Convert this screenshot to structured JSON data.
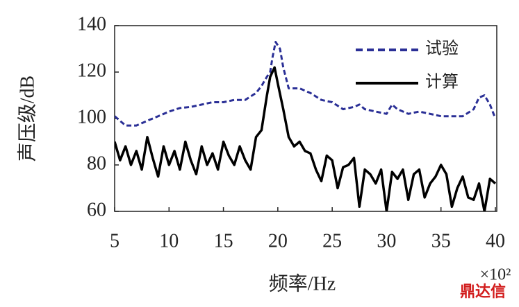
{
  "chart_data": {
    "type": "line",
    "y_label": "声压级/dB",
    "x_label": "频率/Hz",
    "x_multiplier": "×10²",
    "watermark": "鼎达信",
    "xlim": [
      5,
      40
    ],
    "xticks": [
      5,
      10,
      15,
      20,
      25,
      30,
      35,
      40
    ],
    "ylim": [
      60,
      140
    ],
    "yticks": [
      60,
      80,
      100,
      120,
      140
    ],
    "series": [
      {
        "name": "试验",
        "color": "#2a2f96",
        "dash": true,
        "x": [
          5,
          6,
          7,
          7.5,
          8.5,
          9,
          10,
          11,
          12,
          13,
          14,
          15,
          16,
          17,
          18,
          18.5,
          19,
          19.3,
          19.5,
          19.8,
          20.2,
          20.5,
          21,
          22,
          23,
          24,
          25,
          26,
          27,
          27.5,
          28,
          29,
          30,
          30.5,
          31,
          32,
          33,
          34,
          35,
          36,
          37,
          38,
          38.5,
          39,
          39.5,
          40
        ],
        "values": [
          101,
          97,
          97,
          98,
          100,
          101,
          103,
          104.5,
          105,
          106,
          107,
          107,
          108,
          108,
          111,
          114,
          118,
          120,
          126,
          133,
          130,
          122,
          113,
          113,
          111,
          108,
          107,
          104,
          105,
          106,
          104,
          103,
          102,
          106,
          104,
          102,
          103,
          102,
          101,
          101,
          101,
          104,
          109,
          110,
          106,
          100
        ]
      },
      {
        "name": "计算",
        "color": "#000000",
        "dash": false,
        "x": [
          5,
          5.5,
          6,
          6.5,
          7,
          7.5,
          8,
          8.5,
          9,
          9.5,
          10,
          10.5,
          11,
          11.5,
          12,
          12.5,
          13,
          13.5,
          14,
          14.5,
          15,
          15.5,
          16,
          16.5,
          17,
          17.5,
          18,
          18.5,
          19,
          19.3,
          19.7,
          20,
          20.5,
          21,
          21.5,
          22,
          22.5,
          23,
          23.5,
          24,
          24.5,
          25,
          25.5,
          26,
          26.5,
          27,
          27.5,
          28,
          28.5,
          29,
          29.5,
          30,
          30.5,
          31,
          31.5,
          32,
          32.5,
          33,
          33.5,
          34,
          34.5,
          35,
          35.5,
          36,
          36.5,
          37,
          37.5,
          38,
          38.5,
          39,
          39.5,
          40
        ],
        "values": [
          90,
          82,
          88,
          80,
          86,
          78,
          92,
          83,
          75,
          88,
          80,
          86,
          78,
          90,
          82,
          76,
          88,
          80,
          85,
          78,
          90,
          84,
          80,
          88,
          82,
          78,
          92,
          95,
          110,
          118,
          122,
          115,
          104,
          92,
          88,
          90,
          86,
          85,
          78,
          73,
          84,
          82,
          70,
          79,
          80,
          83,
          62,
          78,
          76,
          72,
          78,
          60,
          77,
          74,
          78,
          65,
          76,
          78,
          66,
          72,
          75,
          80,
          76,
          62,
          70,
          75,
          66,
          65,
          72,
          60,
          74,
          72
        ]
      }
    ]
  }
}
